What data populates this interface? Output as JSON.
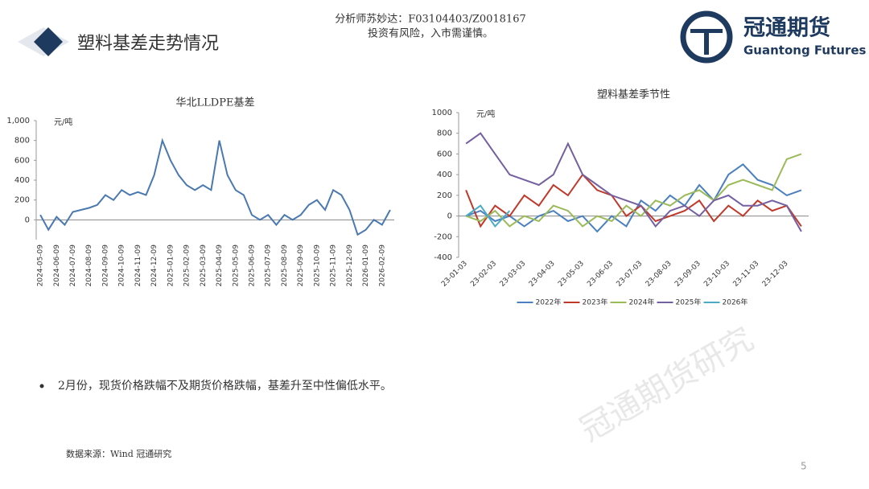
{
  "header": {
    "title": "塑料基差走势情况",
    "analyst": "分析师苏妙达：F03104403/Z0018167",
    "risk": "投资有风险，入市需谨慎。",
    "logo_cn": "冠通期货",
    "logo_en": "Guantong Futures"
  },
  "chart_data": [
    {
      "type": "line",
      "title": "华北LLDPE基差",
      "unit": "元/吨",
      "color": "#4a78b0",
      "categories": [
        "2024-05-09",
        null,
        "2024-06-09",
        null,
        "2024-07-09",
        null,
        "2024-08-09",
        null,
        "2024-09-09",
        null,
        "2024-10-09",
        null,
        "2024-11-09",
        null,
        "2024-12-09",
        null,
        "2025-01-09",
        null,
        "2025-02-09",
        null,
        "2025-03-09",
        null,
        "2025-04-09",
        null,
        "2025-05-09",
        null,
        "2025-06-09",
        null,
        "2025-07-09",
        null,
        "2025-08-09",
        null,
        "2025-09-09",
        null,
        "2025-10-09",
        null,
        "2025-11-09",
        null,
        "2025-12-09",
        null,
        "2026-01-09",
        null,
        "2026-02-09",
        null
      ],
      "values": [
        50,
        -100,
        30,
        -50,
        80,
        100,
        120,
        150,
        250,
        200,
        300,
        250,
        280,
        250,
        450,
        800,
        600,
        450,
        350,
        300,
        350,
        300,
        800,
        450,
        300,
        250,
        50,
        0,
        50,
        -50,
        50,
        0,
        50,
        150,
        200,
        100,
        300,
        250,
        100,
        -150,
        -100,
        0,
        -50,
        100
      ],
      "ylim": [
        -200,
        1000
      ],
      "yticks": [
        {
          "value": 1000,
          "label": "1,000"
        },
        800,
        600,
        400,
        200,
        0
      ]
    },
    {
      "type": "line",
      "title": "塑料基差季节性",
      "unit": "元/吨",
      "categories": [
        "23-01-03",
        null,
        "23-02-03",
        null,
        "23-03-03",
        null,
        "23-04-03",
        null,
        "23-05-03",
        null,
        "23-06-03",
        null,
        "23-07-03",
        null,
        "23-08-03",
        null,
        "23-09-03",
        null,
        "23-10-03",
        null,
        "23-11-03",
        null,
        "23-12-03",
        null
      ],
      "series": [
        {
          "name": "2022年",
          "color": "#4a7fc0",
          "values": [
            0,
            50,
            -50,
            0,
            -100,
            0,
            50,
            -50,
            0,
            -150,
            0,
            -100,
            150,
            50,
            200,
            100,
            300,
            150,
            400,
            500,
            350,
            300,
            200,
            250
          ]
        },
        {
          "name": "2023年",
          "color": "#c0392b",
          "values": [
            250,
            -100,
            100,
            0,
            200,
            100,
            300,
            200,
            400,
            250,
            200,
            0,
            100,
            -50,
            0,
            50,
            150,
            -50,
            100,
            0,
            150,
            50,
            100,
            -100
          ]
        },
        {
          "name": "2024年",
          "color": "#9bbb59",
          "values": [
            0,
            -50,
            50,
            -100,
            0,
            -50,
            100,
            50,
            -100,
            0,
            -50,
            100,
            0,
            150,
            100,
            200,
            250,
            150,
            300,
            350,
            300,
            250,
            550,
            600
          ]
        },
        {
          "name": "2025年",
          "color": "#7460a0",
          "values": [
            700,
            800,
            600,
            400,
            350,
            300,
            400,
            700,
            400,
            300,
            200,
            150,
            100,
            -100,
            50,
            100,
            0,
            150,
            200,
            100,
            100,
            150,
            100,
            -150
          ]
        },
        {
          "name": "2026年",
          "color": "#4bacc6",
          "values": [
            0,
            100,
            -100,
            50,
            null,
            null,
            null,
            null,
            null,
            null,
            null,
            null,
            null,
            null,
            null,
            null,
            null,
            null,
            null,
            null,
            null,
            null,
            null,
            null
          ]
        }
      ],
      "ylim": [
        -400,
        1000
      ],
      "yticks": [
        1000,
        800,
        600,
        400,
        200,
        0,
        -200,
        -400
      ],
      "legend": "bottom"
    }
  ],
  "bullet": "2月份，现货价格跌幅不及期货价格跌幅，基差升至中性偏低水平。",
  "source": "数据来源：Wind 冠通研究",
  "page": "5",
  "watermark": "冠通期货研究"
}
